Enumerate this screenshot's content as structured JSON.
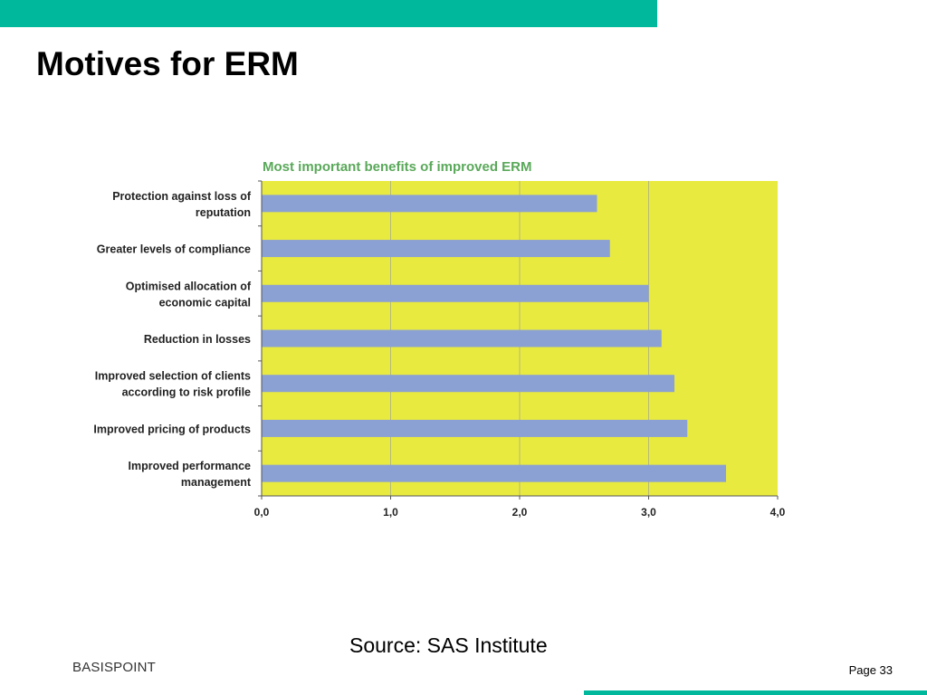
{
  "slide": {
    "title": "Motives for ERM",
    "source": "Source: SAS Institute",
    "logo": "BASISPOINT",
    "page": "Page 33"
  },
  "colors": {
    "accent": "#00b89c",
    "plot_bg": "#e9ea3f",
    "bar": "#8ba1d3",
    "chart_title": "#5aa85a"
  },
  "chart_data": {
    "type": "bar",
    "orientation": "horizontal",
    "title": "Most important benefits of improved ERM",
    "categories": [
      [
        "Protection against loss of",
        "reputation"
      ],
      [
        "Greater levels of compliance"
      ],
      [
        "Optimised allocation of",
        "economic capital"
      ],
      [
        "Reduction in losses"
      ],
      [
        "Improved selection of clients",
        "according to risk profile"
      ],
      [
        "Improved pricing of products"
      ],
      [
        "Improved performance",
        "management"
      ]
    ],
    "values": [
      2.6,
      2.7,
      3.0,
      3.1,
      3.2,
      3.3,
      3.6
    ],
    "xlim": [
      0,
      4
    ],
    "xticks": [
      0,
      1,
      2,
      3,
      4
    ],
    "xtick_labels": [
      "0,0",
      "1,0",
      "2,0",
      "3,0",
      "4,0"
    ],
    "grid": true
  }
}
